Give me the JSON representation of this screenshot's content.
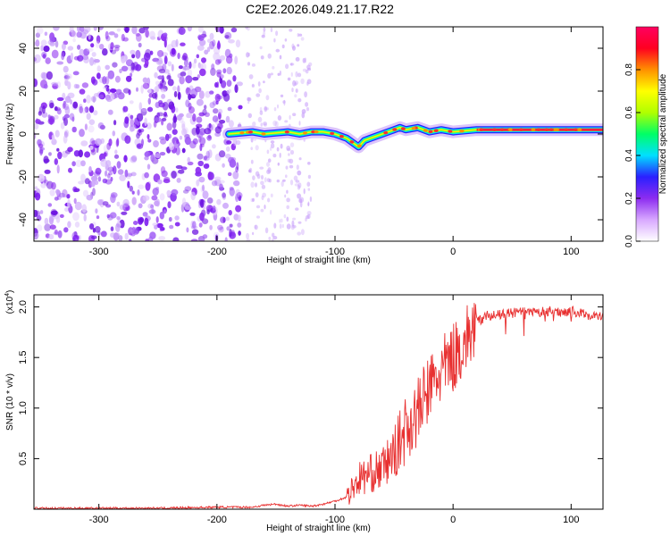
{
  "title": "C2E2.2026.049.21.17.R22",
  "chart_data": [
    {
      "type": "heatmap",
      "name": "spectrogram",
      "xlabel": "Height of straight line (km)",
      "ylabel": "Frequency (Hz)",
      "xlim": [
        -355,
        127
      ],
      "ylim": [
        -50,
        50
      ],
      "xticks": [
        -300,
        -200,
        -100,
        0,
        100
      ],
      "yticks": [
        -40,
        -20,
        0,
        20,
        40
      ],
      "colorbar": {
        "label": "Normalized spectral amplitude",
        "range": [
          0.0,
          1.0
        ],
        "ticks": [
          0.0,
          0.2,
          0.4,
          0.6,
          0.8
        ],
        "tick_labels": [
          "0.0",
          "0.2",
          "0.4",
          "0.6",
          "0.8"
        ],
        "colors": [
          "#ffffff",
          "#d8a8ff",
          "#8c2cf0",
          "#2a20ff",
          "#00e0ff",
          "#00ff66",
          "#b0ff00",
          "#ffff00",
          "#ff9000",
          "#ff0020",
          "#ff0060"
        ]
      },
      "noise_region_km": [
        -355,
        -180
      ],
      "faint_noise_region_km": [
        -175,
        -120
      ],
      "signal_track": {
        "height_km": [
          -190,
          -170,
          -160,
          -150,
          -140,
          -130,
          -120,
          -110,
          -100,
          -90,
          -85,
          -80,
          -75,
          -70,
          -60,
          -50,
          -45,
          -40,
          -30,
          -20,
          -10,
          0,
          20,
          40,
          60,
          80,
          100,
          120,
          127
        ],
        "frequency_hz": [
          0,
          1,
          0,
          0.5,
          1,
          0,
          1,
          1,
          0,
          -2,
          -4,
          -6,
          -3,
          -2,
          0,
          2,
          3,
          2,
          3,
          1,
          2,
          1,
          2,
          2,
          2,
          2,
          2,
          2,
          2
        ]
      }
    },
    {
      "type": "line",
      "name": "snr",
      "xlabel": "Height of straight line (km)",
      "ylabel": "SNR (10 * v/v)",
      "y_multiplier": "(x10",
      "y_multiplier_exp": "4",
      "y_multiplier_close": ")",
      "xlim": [
        -355,
        127
      ],
      "ylim": [
        0,
        2.12
      ],
      "xticks": [
        -300,
        -200,
        -100,
        0,
        100
      ],
      "yticks": [
        0.5,
        1.0,
        1.5,
        2.0
      ],
      "series_color": "#e83030",
      "series": {
        "x": [
          -355,
          -300,
          -250,
          -200,
          -170,
          -160,
          -150,
          -140,
          -130,
          -120,
          -110,
          -100,
          -90,
          -80,
          -70,
          -60,
          -50,
          -40,
          -30,
          -20,
          -10,
          0,
          10,
          20,
          30,
          40,
          50,
          60,
          70,
          80,
          90,
          100,
          110,
          120,
          127
        ],
        "y": [
          0.01,
          0.01,
          0.01,
          0.02,
          0.02,
          0.04,
          0.05,
          0.03,
          0.04,
          0.03,
          0.05,
          0.08,
          0.12,
          0.3,
          0.35,
          0.4,
          0.55,
          0.8,
          0.95,
          1.2,
          1.35,
          1.5,
          1.65,
          1.85,
          1.92,
          1.92,
          1.94,
          1.95,
          1.94,
          1.96,
          1.95,
          1.96,
          1.93,
          1.91,
          1.9
        ]
      }
    }
  ]
}
